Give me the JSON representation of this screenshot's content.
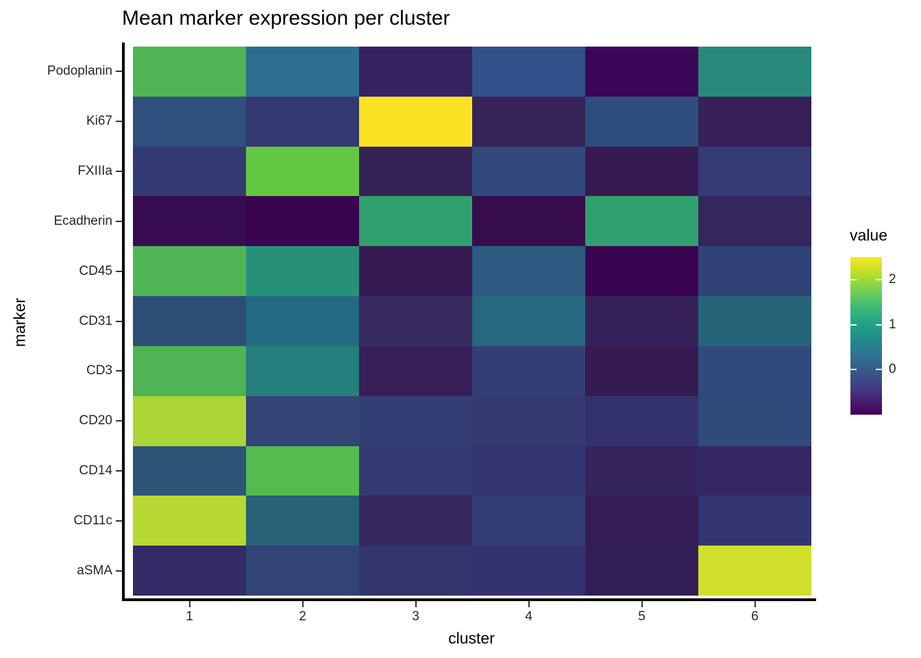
{
  "chart_data": {
    "type": "heatmap",
    "title": "Mean marker expression per cluster",
    "xlabel": "cluster",
    "ylabel": "marker",
    "x_categories": [
      "1",
      "2",
      "3",
      "4",
      "5",
      "6"
    ],
    "y_categories": [
      "Podoplanin",
      "Ki67",
      "FXIIIa",
      "Ecadherin",
      "CD45",
      "CD31",
      "CD3",
      "CD20",
      "CD14",
      "CD11c",
      "aSMA"
    ],
    "values": [
      [
        1.6,
        0.4,
        -0.6,
        0.0,
        -0.85,
        0.95
      ],
      [
        0.0,
        -0.4,
        2.4,
        -0.55,
        0.0,
        -0.6
      ],
      [
        -0.3,
        1.7,
        -0.6,
        -0.1,
        -0.7,
        -0.3
      ],
      [
        -0.8,
        -0.95,
        1.2,
        -0.8,
        1.2,
        -0.5
      ],
      [
        1.6,
        0.9,
        -0.7,
        0.15,
        -1.0,
        -0.2
      ],
      [
        0.0,
        0.45,
        -0.45,
        0.45,
        -0.6,
        0.4
      ],
      [
        1.6,
        0.7,
        -0.6,
        -0.3,
        -0.65,
        -0.1
      ],
      [
        2.0,
        -0.2,
        -0.3,
        -0.35,
        -0.4,
        -0.1
      ],
      [
        0.1,
        1.6,
        -0.3,
        -0.35,
        -0.55,
        -0.5
      ],
      [
        2.1,
        0.35,
        -0.5,
        -0.3,
        -0.6,
        -0.35
      ],
      [
        -0.45,
        -0.2,
        -0.4,
        -0.4,
        -0.6,
        2.2
      ]
    ],
    "cell_colors": [
      [
        "#50b453",
        "#2d6d8e",
        "#372262",
        "#34508a",
        "#3a0757",
        "#27897b"
      ],
      [
        "#2f4f7d",
        "#343871",
        "#fbe323",
        "#372458",
        "#2f4d7c",
        "#372158"
      ],
      [
        "#333a73",
        "#64c743",
        "#362254",
        "#31497c",
        "#361b52",
        "#333a74"
      ],
      [
        "#380c50",
        "#3a054e",
        "#2fa06e",
        "#370d4e",
        "#2fa06e",
        "#34275c"
      ],
      [
        "#4fb553",
        "#279178",
        "#361b52",
        "#2d5a80",
        "#3b0450",
        "#2f4377"
      ],
      [
        "#2e4e78",
        "#256a85",
        "#362a60",
        "#26697f",
        "#36205a",
        "#266579"
      ],
      [
        "#4fb454",
        "#257f7a",
        "#361e57",
        "#333e74",
        "#361b53",
        "#2f4a7b"
      ],
      [
        "#abd436",
        "#334476",
        "#333f74",
        "#343a70",
        "#34326e",
        "#304a7a"
      ],
      [
        "#2c5577",
        "#55bb4e",
        "#333a72",
        "#343672",
        "#35255c",
        "#342661"
      ],
      [
        "#b9d832",
        "#266379",
        "#35285e",
        "#333d73",
        "#351e57",
        "#343671"
      ],
      [
        "#332a66",
        "#304573",
        "#33356d",
        "#343370",
        "#341e58",
        "#cfdf2a"
      ]
    ],
    "color_scale": {
      "name": "viridis",
      "legend_title": "value",
      "domain": [
        -1.0,
        2.5
      ],
      "legend_ticks": [
        2,
        1,
        0
      ],
      "stops": [
        {
          "t": 0.0,
          "color": "#440154"
        },
        {
          "t": 0.111,
          "color": "#482878"
        },
        {
          "t": 0.222,
          "color": "#3e4a89"
        },
        {
          "t": 0.333,
          "color": "#31688e"
        },
        {
          "t": 0.444,
          "color": "#26828e"
        },
        {
          "t": 0.556,
          "color": "#1f9e89"
        },
        {
          "t": 0.667,
          "color": "#35b779"
        },
        {
          "t": 0.778,
          "color": "#6ece58"
        },
        {
          "t": 0.889,
          "color": "#b5de2b"
        },
        {
          "t": 1.0,
          "color": "#fde725"
        }
      ]
    }
  }
}
